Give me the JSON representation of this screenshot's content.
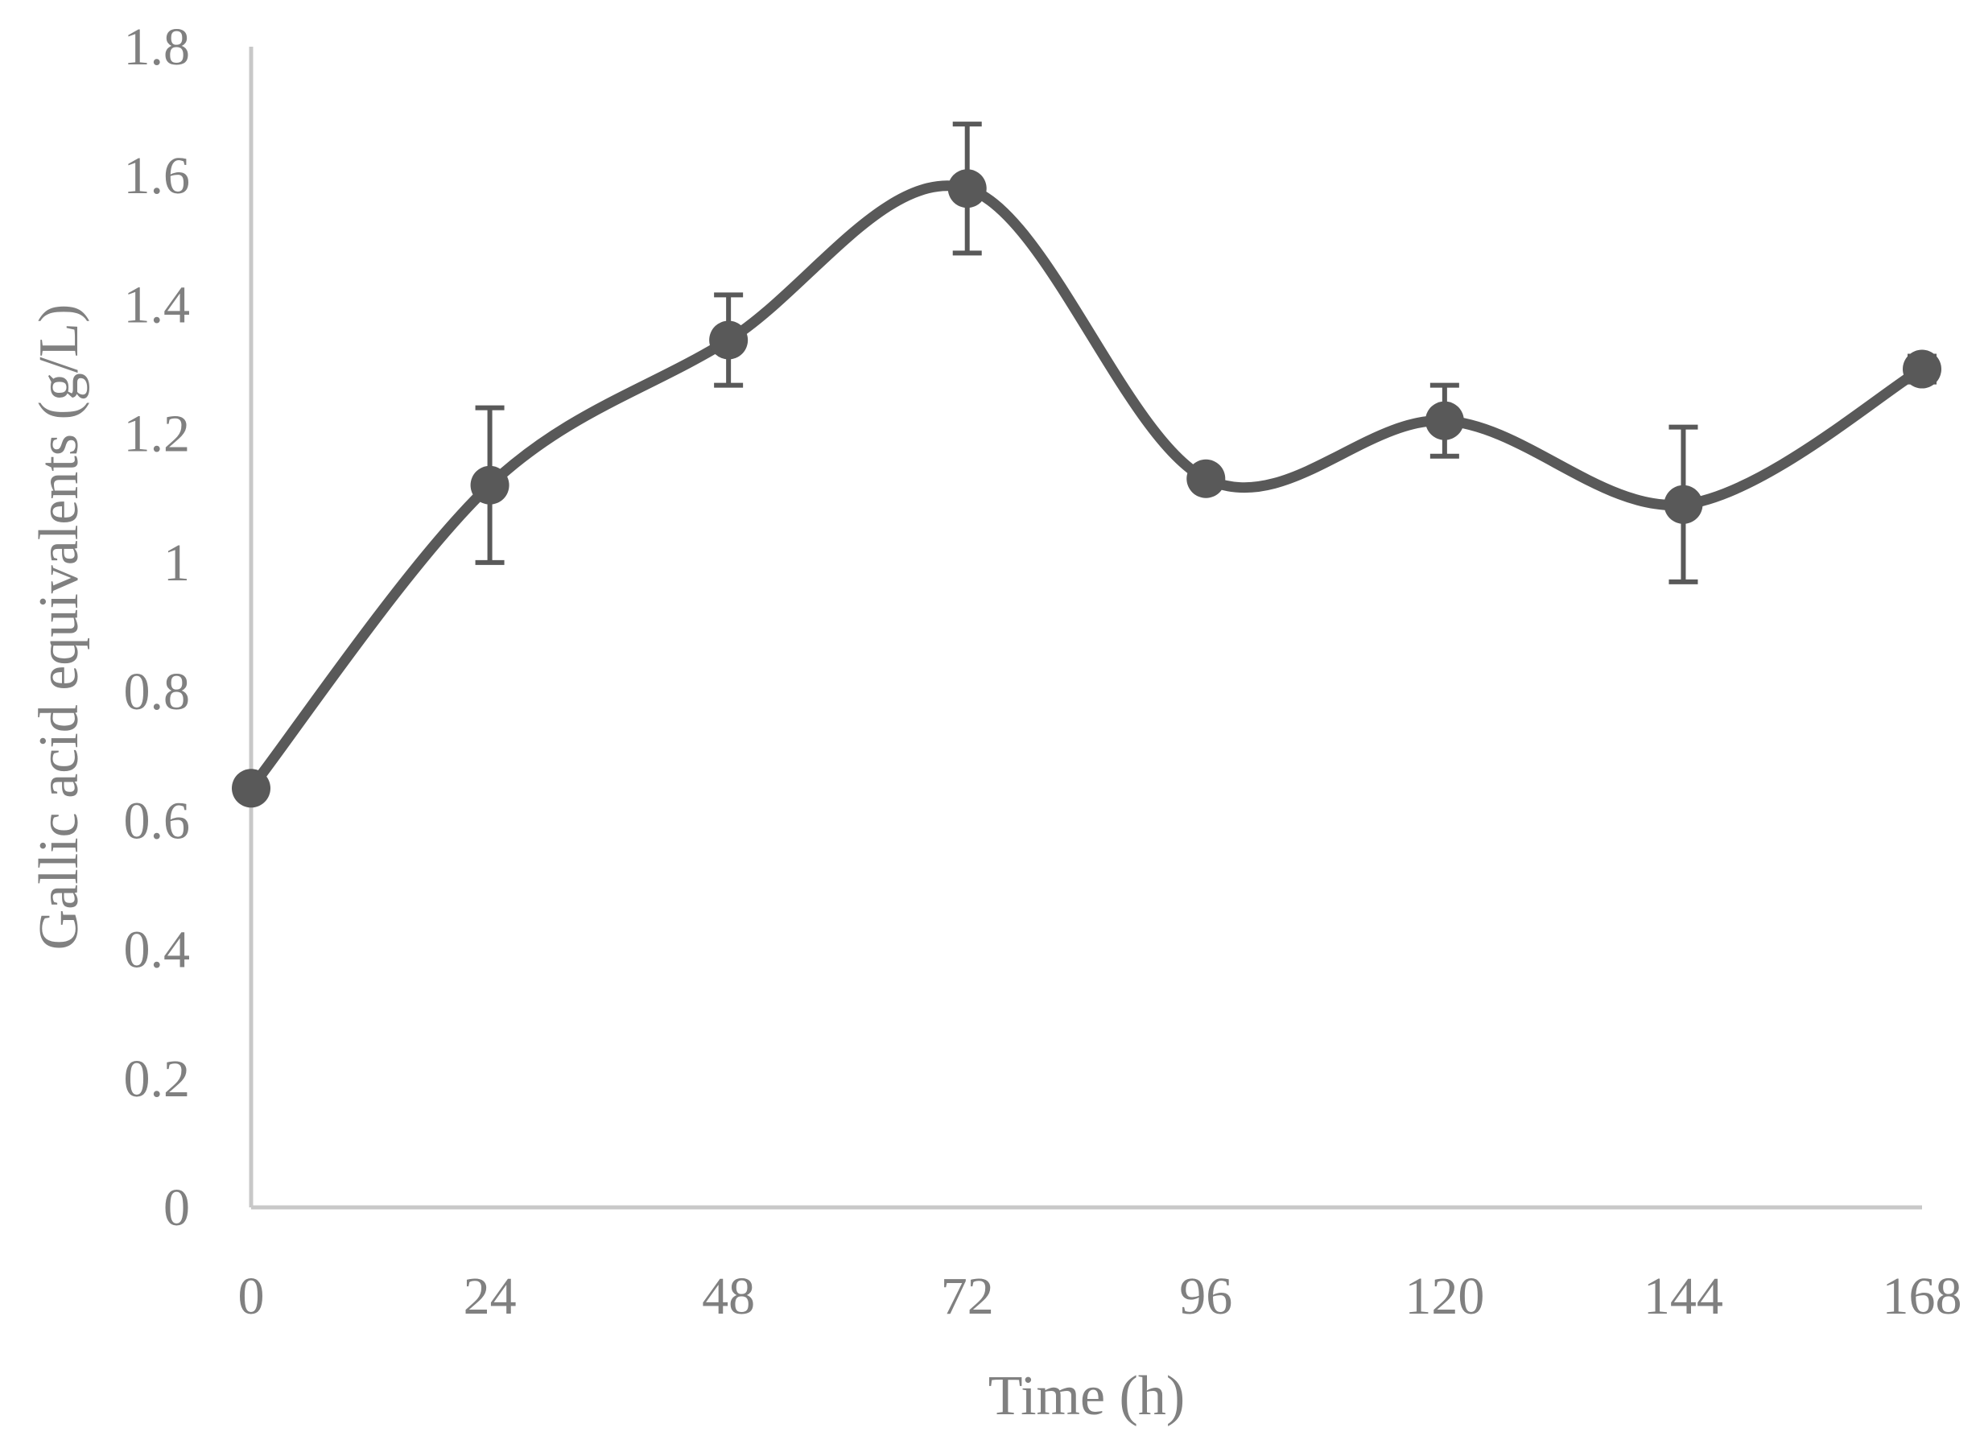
{
  "chart_data": {
    "type": "line",
    "title": "",
    "xlabel": "Time (h)",
    "ylabel": "Gallic acid equivalents (g/L)",
    "x_tick_labels": [
      "0",
      "24",
      "48",
      "72",
      "96",
      "120",
      "144",
      "168"
    ],
    "y_tick_labels": [
      "0",
      "0.2",
      "0.4",
      "0.6",
      "0.8",
      "1",
      "1.2",
      "1.4",
      "1.6",
      "1.8"
    ],
    "ylim": [
      0,
      1.8
    ],
    "xlim": [
      0,
      168
    ],
    "grid": false,
    "smooth": true,
    "series": [
      {
        "name": "Gallic acid equivalents",
        "color": "#595959",
        "x": [
          0,
          24,
          48,
          72,
          96,
          120,
          144,
          168
        ],
        "values": [
          0.65,
          1.12,
          1.345,
          1.58,
          1.13,
          1.22,
          1.09,
          1.3
        ],
        "error": [
          0,
          0.12,
          0.07,
          0.1,
          0,
          0.055,
          0.12,
          0.02
        ]
      }
    ]
  }
}
